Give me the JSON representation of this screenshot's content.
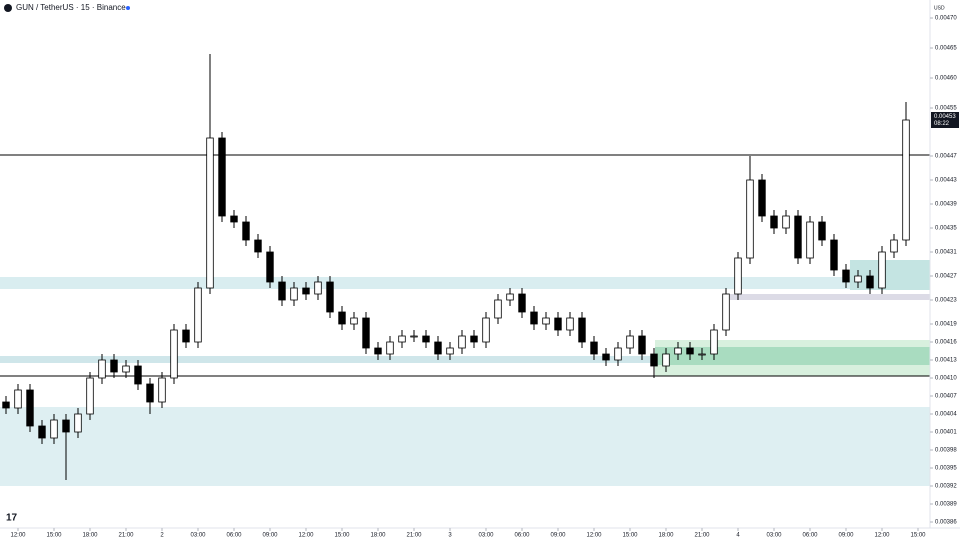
{
  "chart_data": {
    "type": "candlestick",
    "title": "GUN / TetherUS · 15 · Binance",
    "currency": "USD",
    "price_label": "0.00453",
    "countdown": "08:22",
    "up_color": "#ffffff",
    "down_color": "#000000",
    "wick_color": "#000000",
    "xlim": [
      -0.5,
      77
    ],
    "xticks": [
      {
        "value": 1,
        "label": "12:00"
      },
      {
        "value": 4,
        "label": "15:00"
      },
      {
        "value": 7,
        "label": "18:00"
      },
      {
        "value": 10,
        "label": "21:00"
      },
      {
        "value": 13,
        "label": "2"
      },
      {
        "value": 16,
        "label": "03:00"
      },
      {
        "value": 19,
        "label": "06:00"
      },
      {
        "value": 22,
        "label": "09:00"
      },
      {
        "value": 25,
        "label": "12:00"
      },
      {
        "value": 28,
        "label": "15:00"
      },
      {
        "value": 31,
        "label": "18:00"
      },
      {
        "value": 34,
        "label": "21:00"
      },
      {
        "value": 37,
        "label": "3"
      },
      {
        "value": 40,
        "label": "03:00"
      },
      {
        "value": 43,
        "label": "06:00"
      },
      {
        "value": 46,
        "label": "09:00"
      },
      {
        "value": 49,
        "label": "12:00"
      },
      {
        "value": 52,
        "label": "15:00"
      },
      {
        "value": 55,
        "label": "18:00"
      },
      {
        "value": 58,
        "label": "21:00"
      },
      {
        "value": 61,
        "label": "4"
      },
      {
        "value": 64,
        "label": "03:00"
      },
      {
        "value": 67,
        "label": "06:00"
      },
      {
        "value": 70,
        "label": "09:00"
      },
      {
        "value": 73,
        "label": "12:00"
      },
      {
        "value": 76,
        "label": "15:00"
      }
    ],
    "ylim": [
      0.00385,
      0.00473
    ],
    "yticks": [
      {
        "value": 0.0047,
        "label": "0.00470"
      },
      0.00465,
      {
        "value": 0.0046,
        "label": "0.00460"
      },
      0.00455,
      0.00447,
      0.00443,
      0.00439,
      0.00435,
      0.00431,
      0.00427,
      0.00423,
      0.00419,
      0.00416,
      0.00413,
      {
        "value": 0.0041,
        "label": "0.00410"
      },
      0.00407,
      0.00404,
      0.00401,
      0.00398,
      0.00395,
      0.00392,
      0.00389,
      0.00386
    ],
    "open": [
      0.00406,
      0.00405,
      0.00408,
      0.00402,
      0.004,
      0.00403,
      0.00401,
      0.00404,
      0.0041,
      0.00413,
      0.00411,
      0.00412,
      0.00409,
      0.00406,
      0.0041,
      0.00418,
      0.00416,
      0.00425,
      0.0045,
      0.00437,
      0.00436,
      0.00433,
      0.00431,
      0.00426,
      0.00423,
      0.00425,
      0.00424,
      0.00426,
      0.00421,
      0.00419,
      0.0042,
      0.00415,
      0.00414,
      0.00416,
      0.00417,
      0.00417,
      0.00416,
      0.00414,
      0.00415,
      0.00417,
      0.00416,
      0.0042,
      0.00423,
      0.00424,
      0.00421,
      0.00419,
      0.0042,
      0.00418,
      0.0042,
      0.00416,
      0.00414,
      0.00413,
      0.00415,
      0.00417,
      0.00414,
      0.00412,
      0.00414,
      0.00415,
      0.00414,
      0.00414,
      0.00418,
      0.00424,
      0.0043,
      0.00443,
      0.00437,
      0.00435,
      0.00437,
      0.0043,
      0.00436,
      0.00433,
      0.00428,
      0.00426,
      0.00427,
      0.00425,
      0.00431,
      0.00433
    ],
    "high": [
      0.00407,
      0.00409,
      0.00409,
      0.00403,
      0.00404,
      0.00404,
      0.00405,
      0.00411,
      0.00414,
      0.00414,
      0.00413,
      0.00413,
      0.0041,
      0.00411,
      0.00419,
      0.00419,
      0.00426,
      0.00464,
      0.00451,
      0.00438,
      0.00437,
      0.00434,
      0.00432,
      0.00427,
      0.00426,
      0.00426,
      0.00427,
      0.00427,
      0.00422,
      0.00421,
      0.00421,
      0.00416,
      0.00417,
      0.00418,
      0.00418,
      0.00418,
      0.00417,
      0.00416,
      0.00418,
      0.00418,
      0.00421,
      0.00424,
      0.00425,
      0.00425,
      0.00422,
      0.00421,
      0.00421,
      0.00421,
      0.00421,
      0.00417,
      0.00415,
      0.00416,
      0.00418,
      0.00418,
      0.00415,
      0.00415,
      0.00416,
      0.00416,
      0.00415,
      0.00419,
      0.00425,
      0.00431,
      0.00447,
      0.00444,
      0.00438,
      0.00438,
      0.00438,
      0.00437,
      0.00437,
      0.00434,
      0.00429,
      0.00428,
      0.00428,
      0.00432,
      0.00434,
      0.00456
    ],
    "low": [
      0.00404,
      0.00404,
      0.00401,
      0.00399,
      0.00399,
      0.00393,
      0.004,
      0.00403,
      0.00409,
      0.0041,
      0.0041,
      0.00408,
      0.00404,
      0.00405,
      0.00409,
      0.00415,
      0.00415,
      0.00424,
      0.00436,
      0.00435,
      0.00432,
      0.0043,
      0.00425,
      0.00422,
      0.00422,
      0.00423,
      0.00423,
      0.0042,
      0.00418,
      0.00418,
      0.00414,
      0.00413,
      0.00413,
      0.00415,
      0.00416,
      0.00415,
      0.00413,
      0.00413,
      0.00414,
      0.00415,
      0.00415,
      0.00419,
      0.00422,
      0.0042,
      0.00418,
      0.00418,
      0.00417,
      0.00417,
      0.00415,
      0.00413,
      0.00412,
      0.00412,
      0.00414,
      0.00413,
      0.0041,
      0.00411,
      0.00413,
      0.00413,
      0.00413,
      0.00413,
      0.00417,
      0.00423,
      0.00429,
      0.00436,
      0.00434,
      0.00434,
      0.00429,
      0.00429,
      0.00432,
      0.00427,
      0.00425,
      0.00425,
      0.00424,
      0.00424,
      0.0043,
      0.00432
    ],
    "close": [
      0.00405,
      0.00408,
      0.00402,
      0.004,
      0.00403,
      0.00401,
      0.00404,
      0.0041,
      0.00413,
      0.00411,
      0.00412,
      0.00409,
      0.00406,
      0.0041,
      0.00418,
      0.00416,
      0.00425,
      0.0045,
      0.00437,
      0.00436,
      0.00433,
      0.00431,
      0.00426,
      0.00423,
      0.00425,
      0.00424,
      0.00426,
      0.00421,
      0.00419,
      0.0042,
      0.00415,
      0.00414,
      0.00416,
      0.00417,
      0.00417,
      0.00416,
      0.00414,
      0.00415,
      0.00417,
      0.00416,
      0.0042,
      0.00423,
      0.00424,
      0.00421,
      0.00419,
      0.0042,
      0.00418,
      0.0042,
      0.00416,
      0.00414,
      0.00413,
      0.00415,
      0.00417,
      0.00414,
      0.00412,
      0.00414,
      0.00415,
      0.00414,
      0.00414,
      0.00418,
      0.00424,
      0.0043,
      0.00443,
      0.00437,
      0.00435,
      0.00437,
      0.0043,
      0.00436,
      0.00433,
      0.00428,
      0.00426,
      0.00427,
      0.00425,
      0.00431,
      0.00433,
      0.00453
    ]
  }
}
